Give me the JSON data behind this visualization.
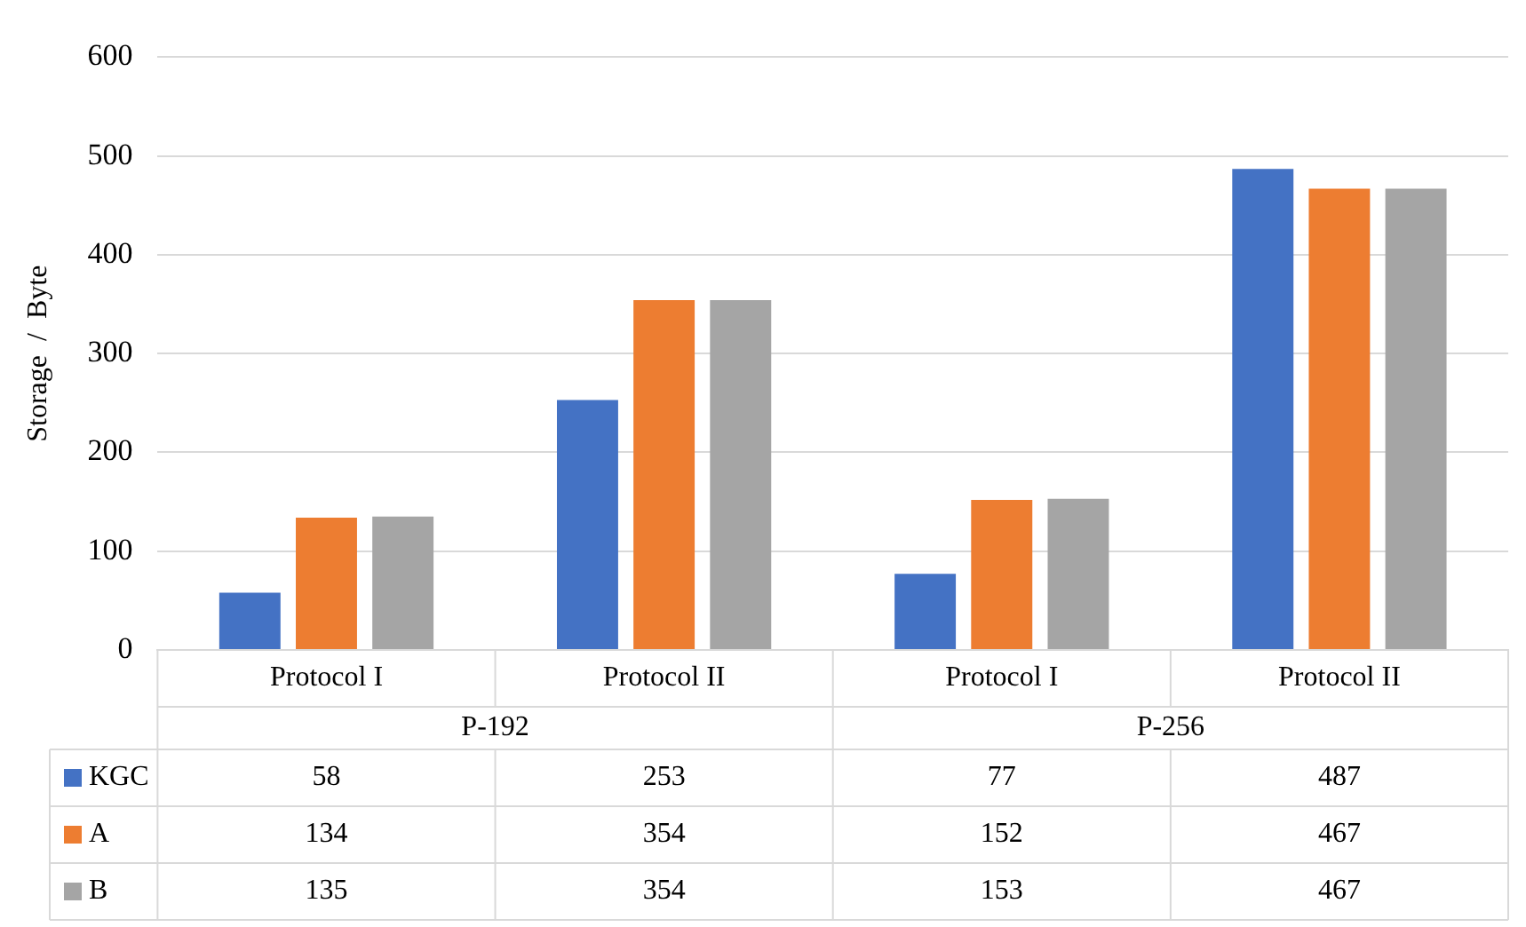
{
  "chart_data": {
    "type": "bar",
    "ylabel": "Storage  /  Byte",
    "categories": [
      "Protocol I",
      "Protocol II",
      "Protocol I",
      "Protocol II"
    ],
    "annotations": [
      "P-192",
      "P-256"
    ],
    "series": [
      {
        "name": "KGC",
        "color": "#4472c4",
        "values": [
          58,
          253,
          77,
          487
        ]
      },
      {
        "name": "A",
        "color": "#ed7d31",
        "values": [
          134,
          354,
          152,
          467
        ]
      },
      {
        "name": "B",
        "color": "#a5a5a5",
        "values": [
          135,
          354,
          153,
          467
        ]
      }
    ],
    "ylim": [
      0,
      600
    ],
    "yticks": [
      0,
      100,
      200,
      300,
      400,
      500,
      600
    ],
    "grid": "y",
    "legend": "bottom",
    "data_labels": true
  }
}
